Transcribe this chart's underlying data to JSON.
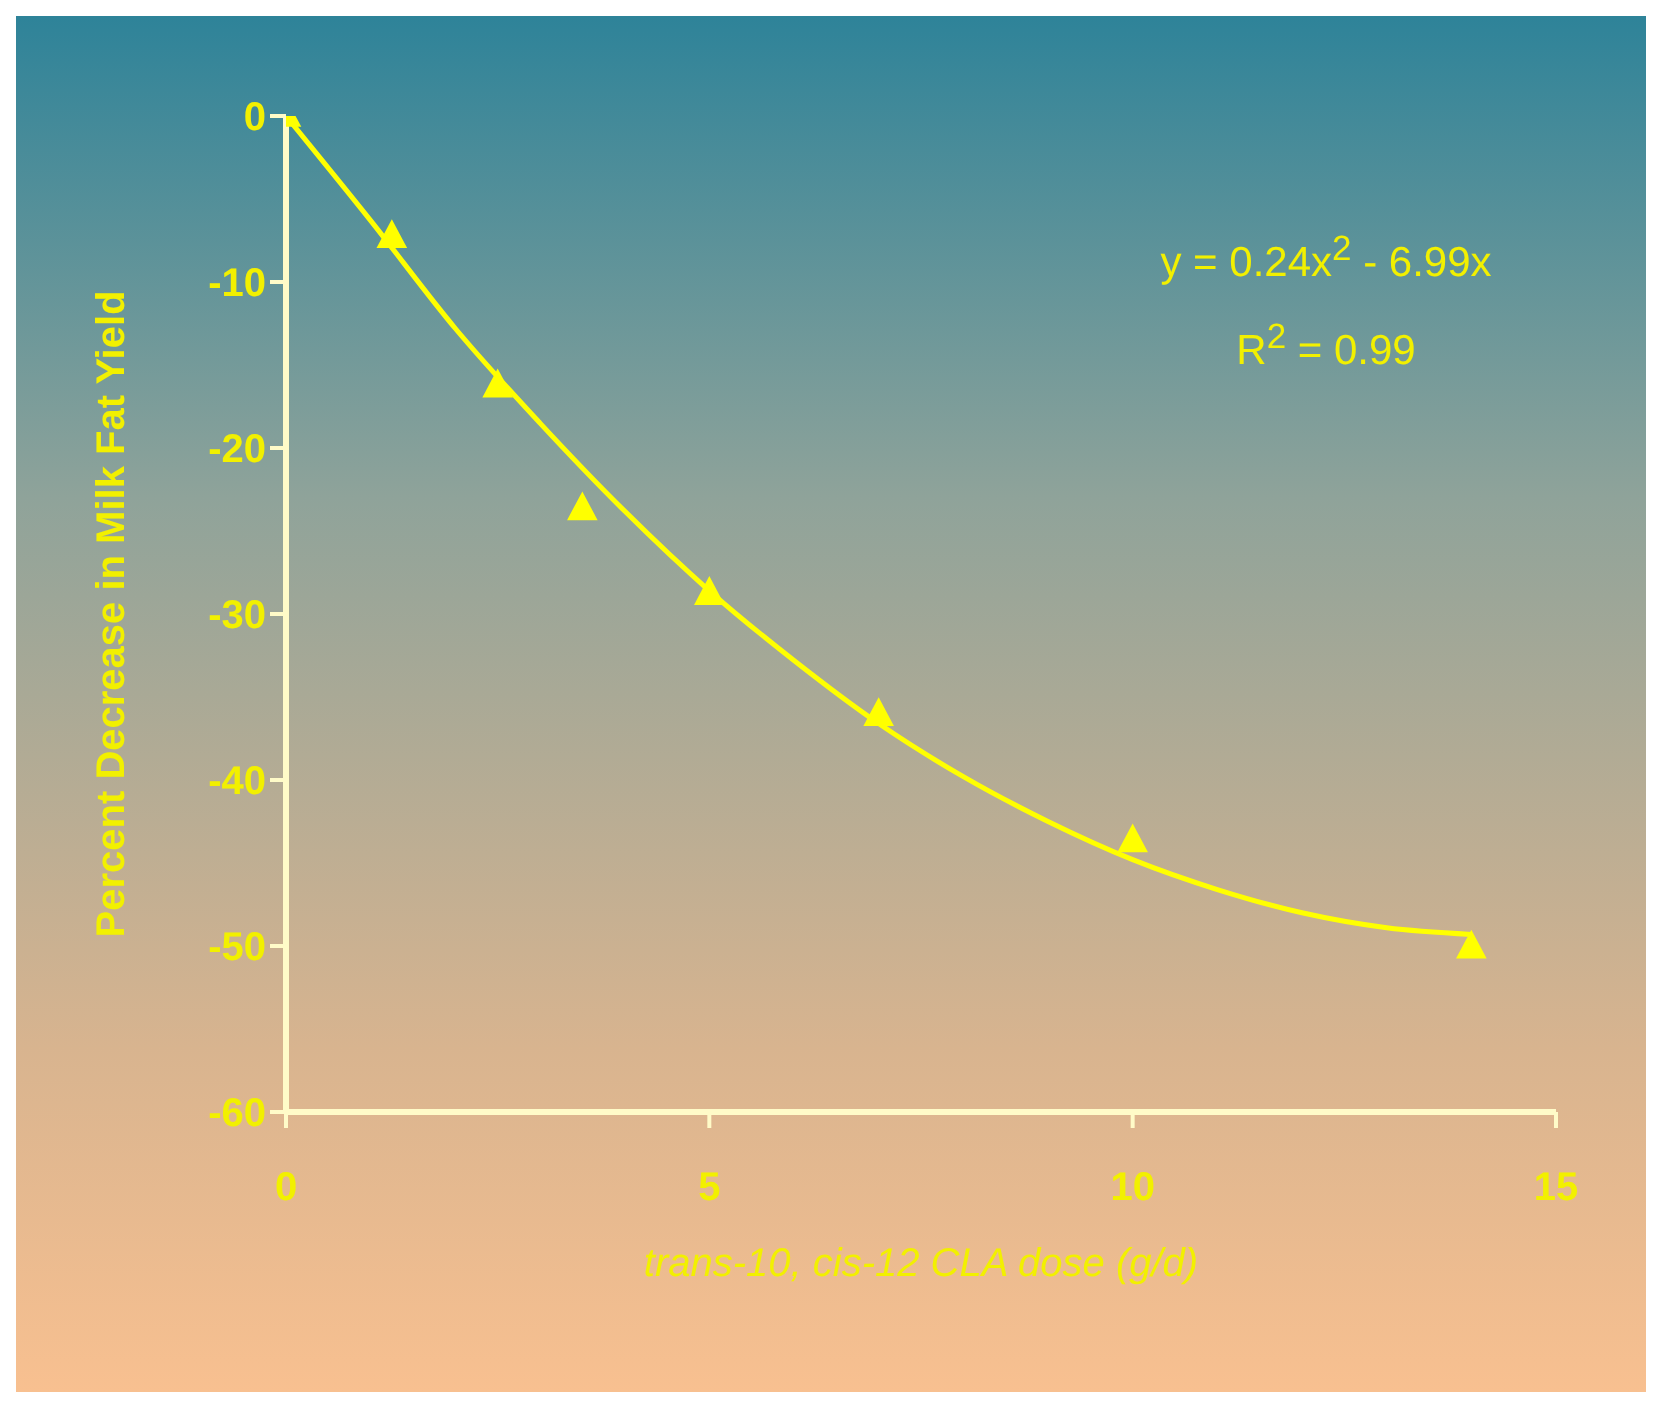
{
  "chart_data": {
    "type": "scatter",
    "xlabel": "trans-10, cis-12 CLA dose (g/d)",
    "ylabel": "Percent Decrease in Milk Fat Yield",
    "annotations": [
      "y = 0.24x$^{2}$ - 6.99x",
      "R$^{2}$ = 0.99"
    ],
    "xlim": [
      0,
      15
    ],
    "xticks": [
      0,
      5,
      10,
      15
    ],
    "ylim": [
      -60,
      0
    ],
    "yticks": [
      -60,
      -50,
      -40,
      -30,
      -20,
      -10,
      0
    ],
    "grid": false,
    "legend": false,
    "series": [
      {
        "color": "#ffff00",
        "marker": "triangle",
        "x": [
          0,
          1.25,
          2.5,
          3.5,
          5,
          7,
          10,
          14
        ],
        "values": [
          0,
          -7.3,
          -16.3,
          -23.7,
          -28.8,
          -36.1,
          -43.7,
          -50.1
        ]
      },
      {
        "type": "line",
        "color": "#ffff00",
        "marker": "none",
        "x": [
          0,
          1,
          2,
          3,
          4,
          5,
          6,
          7,
          8,
          9,
          10,
          11,
          12,
          13,
          14
        ],
        "values": [
          0,
          -6.3,
          -12.8,
          -18.5,
          -23.8,
          -28.6,
          -32.8,
          -36.6,
          -39.8,
          -42.5,
          -44.8,
          -46.6,
          -48,
          -48.9,
          -49.3
        ]
      }
    ]
  }
}
